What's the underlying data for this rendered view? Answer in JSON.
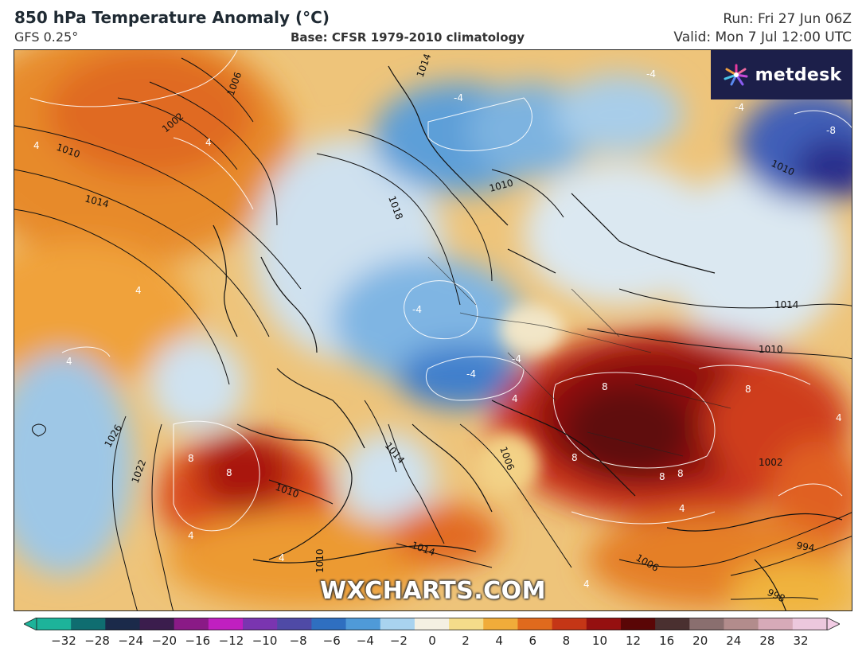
{
  "header": {
    "title": "850 hPa Temperature Anomaly (°C)",
    "model": "GFS 0.25°",
    "base": "Base: CFSR 1979-2010 climatology",
    "run": "Run: Fri 27 Jun 06Z",
    "valid": "Valid: Mon 7 Jul 12:00 UTC"
  },
  "logo": {
    "text": "metdesk",
    "icon": "metdesk-star-icon"
  },
  "watermark": "WXCHARTS.COM",
  "colorbar": {
    "ticks": [
      "−32",
      "−28",
      "−24",
      "−20",
      "−16",
      "−12",
      "−10",
      "−8",
      "−6",
      "−4",
      "−2",
      "0",
      "2",
      "4",
      "6",
      "8",
      "10",
      "12",
      "16",
      "20",
      "24",
      "28",
      "32"
    ],
    "colors": [
      "#1db39a",
      "#0f6d70",
      "#1b2a4a",
      "#3b1d4d",
      "#8a1a86",
      "#c01fc0",
      "#7a35b0",
      "#4f4aa6",
      "#2f6fc0",
      "#4f9ad8",
      "#a9d3ef",
      "#f4f0e2",
      "#f4dc8a",
      "#f0ac3a",
      "#e06a1d",
      "#c53616",
      "#951010",
      "#5a0606",
      "#4a3030",
      "#8a6f6f",
      "#b28c8c",
      "#d7aab8",
      "#ecc8dd"
    ],
    "extend_low_color": "#1db39a",
    "extend_high_color": "#f3cde5"
  },
  "isobar_labels": [
    {
      "text": "1006"
    },
    {
      "text": "1002"
    },
    {
      "text": "1010"
    },
    {
      "text": "1014"
    },
    {
      "text": "1018"
    },
    {
      "text": "1010"
    },
    {
      "text": "1014"
    },
    {
      "text": "1014"
    },
    {
      "text": "1010"
    },
    {
      "text": "1026"
    },
    {
      "text": "1022"
    },
    {
      "text": "1014"
    },
    {
      "text": "1010"
    },
    {
      "text": "1014"
    },
    {
      "text": "1010"
    },
    {
      "text": "1006"
    },
    {
      "text": "1002"
    },
    {
      "text": "994"
    },
    {
      "text": "998"
    },
    {
      "text": "1006"
    },
    {
      "text": "1010"
    },
    {
      "text": "1014"
    }
  ],
  "anomaly_labels": [
    {
      "text": "4"
    },
    {
      "text": "4"
    },
    {
      "text": "-4"
    },
    {
      "text": "-4"
    },
    {
      "text": "-4"
    },
    {
      "text": "-8"
    },
    {
      "text": "-4"
    },
    {
      "text": "-4"
    },
    {
      "text": "-4"
    },
    {
      "text": "4"
    },
    {
      "text": "4"
    },
    {
      "text": "8"
    },
    {
      "text": "8"
    },
    {
      "text": "8"
    },
    {
      "text": "8"
    },
    {
      "text": "4"
    },
    {
      "text": "8"
    },
    {
      "text": "8"
    },
    {
      "text": "4"
    },
    {
      "text": "8"
    },
    {
      "text": "4"
    },
    {
      "text": "4"
    },
    {
      "text": "4"
    },
    {
      "text": "4"
    }
  ]
}
